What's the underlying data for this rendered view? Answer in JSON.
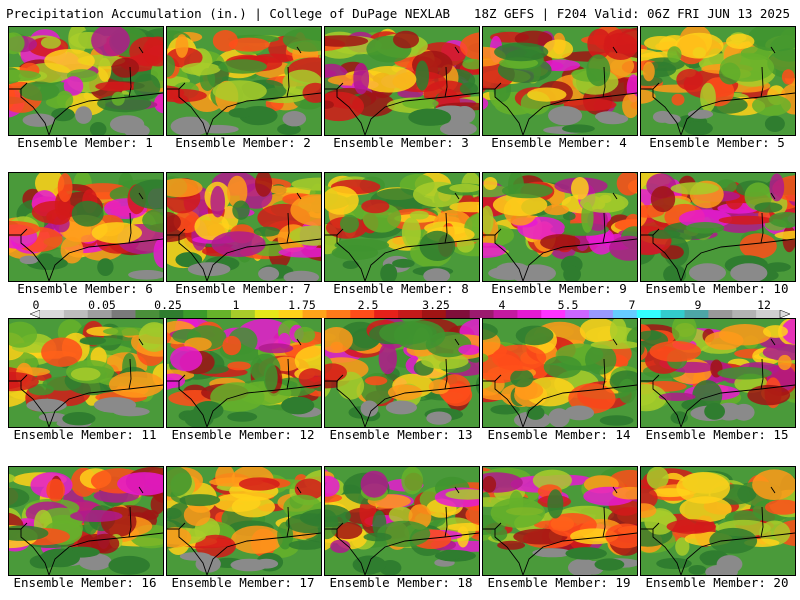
{
  "header": {
    "left": "Precipitation Accumulation (in.) | College of DuPage NEXLAB",
    "right": "18Z GEFS | F204 Valid: 06Z FRI JUN 13 2025"
  },
  "members": [
    {
      "label": "Ensemble Member: 1"
    },
    {
      "label": "Ensemble Member: 2"
    },
    {
      "label": "Ensemble Member: 3"
    },
    {
      "label": "Ensemble Member: 4"
    },
    {
      "label": "Ensemble Member: 5"
    },
    {
      "label": "Ensemble Member: 6"
    },
    {
      "label": "Ensemble Member: 7"
    },
    {
      "label": "Ensemble Member: 8"
    },
    {
      "label": "Ensemble Member: 9"
    },
    {
      "label": "Ensemble Member: 10"
    },
    {
      "label": "Ensemble Member: 11"
    },
    {
      "label": "Ensemble Member: 12"
    },
    {
      "label": "Ensemble Member: 13"
    },
    {
      "label": "Ensemble Member: 14"
    },
    {
      "label": "Ensemble Member: 15"
    },
    {
      "label": "Ensemble Member: 16"
    },
    {
      "label": "Ensemble Member: 17"
    },
    {
      "label": "Ensemble Member: 18"
    },
    {
      "label": "Ensemble Member: 19"
    },
    {
      "label": "Ensemble Member: 20"
    }
  ],
  "colorbar": {
    "ticks": [
      "0",
      "0.05",
      "0.25",
      "1",
      "1.75",
      "2.5",
      "3.25",
      "4",
      "5.5",
      "7",
      "9",
      "12"
    ],
    "colors": [
      "#d9d9d9",
      "#bdbdbd",
      "#9e9e9e",
      "#7a7a7a",
      "#4a8f3a",
      "#2f7d2f",
      "#3a9a2a",
      "#66b22a",
      "#a8cc2a",
      "#e6e61a",
      "#ffd11a",
      "#ffa31a",
      "#ff7a1a",
      "#ff4d1a",
      "#e6201a",
      "#c41a1a",
      "#a01414",
      "#800f3a",
      "#9c1a6e",
      "#c41aa0",
      "#e61ad1",
      "#ff33ff",
      "#cc66ff",
      "#9999ff",
      "#66ccff",
      "#33ffff",
      "#33cccc",
      "#4da6a6",
      "#999999",
      "#b3b3b3",
      "#cfcfcf"
    ]
  }
}
